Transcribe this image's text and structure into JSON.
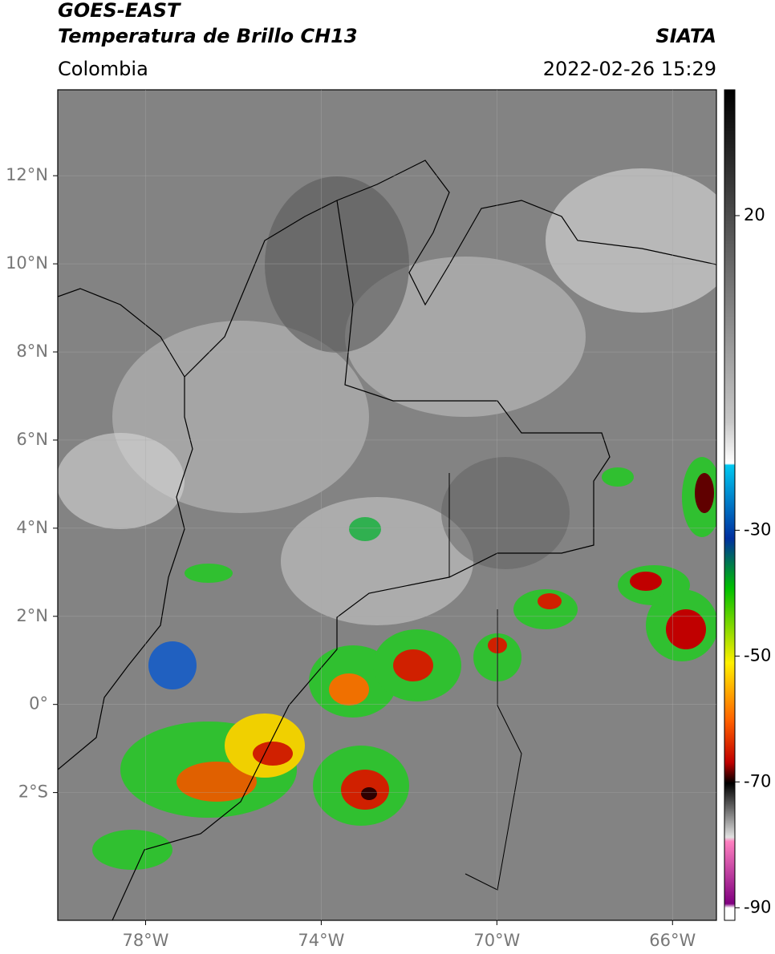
{
  "header": {
    "satellite": "GOES-EAST",
    "product": "Temperatura de Brillo CH13",
    "region": "Colombia",
    "source": "SIATA",
    "datetime": "2022-02-26 15:29"
  },
  "map": {
    "xlim": [
      -80,
      -65
    ],
    "ylim": [
      -4.9,
      13.95
    ],
    "xticks": [
      {
        "value": -78,
        "label": "78°W"
      },
      {
        "value": -74,
        "label": "74°W"
      },
      {
        "value": -70,
        "label": "70°W"
      },
      {
        "value": -66,
        "label": "66°W"
      }
    ],
    "yticks": [
      {
        "value": 12,
        "label": "12°N"
      },
      {
        "value": 10,
        "label": "10°N"
      },
      {
        "value": 8,
        "label": "8°N"
      },
      {
        "value": 6,
        "label": "6°N"
      },
      {
        "value": 4,
        "label": "4°N"
      },
      {
        "value": 2,
        "label": "2°N"
      },
      {
        "value": 0,
        "label": "0°"
      },
      {
        "value": -2,
        "label": "2°S"
      }
    ],
    "grid": true
  },
  "colorbar": {
    "ylim": [
      -92,
      40
    ],
    "yticks": [
      20,
      -30,
      -50,
      -70,
      -90
    ]
  }
}
